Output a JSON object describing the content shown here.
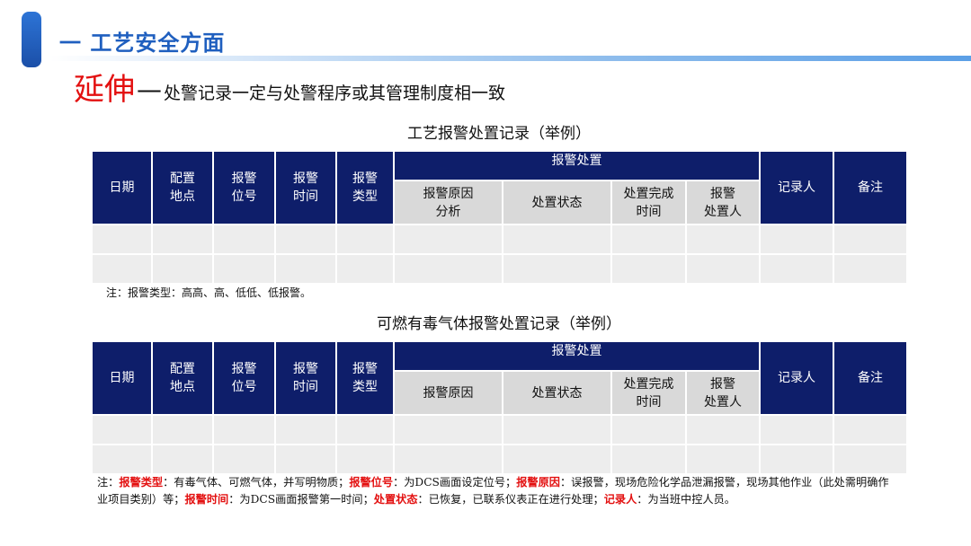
{
  "header": {
    "title": "一 工艺安全方面"
  },
  "subtitle": {
    "big": "延伸",
    "dash": "—",
    "rest": "处警记录一定与处警程序或其管理制度相一致"
  },
  "table1": {
    "caption": "工艺报警处置记录（举例）",
    "headers": {
      "date": "日期",
      "location": "配置\n地点",
      "alarm_pos": "报警\n位号",
      "alarm_time": "报警\n时间",
      "alarm_type": "报警\n类型",
      "group": "报警处置",
      "cause": "报警原因\n分析",
      "status": "处置状态",
      "finish_time": "处置完成\n时间",
      "handler": "报警\n处置人",
      "recorder": "记录人",
      "remark": "备注"
    },
    "note": "注：报警类型：高高、高、低低、低报警。"
  },
  "table2": {
    "caption": "可燃有毒气体报警处置记录（举例）",
    "headers": {
      "date": "日期",
      "location": "配置\n地点",
      "alarm_pos": "报警\n位号",
      "alarm_time": "报警\n时间",
      "alarm_type": "报警\n类型",
      "group": "报警处置",
      "cause": "报警原因",
      "status": "处置状态",
      "finish_time": "处置完成\n时间",
      "handler": "报警\n处置人",
      "recorder": "记录人",
      "remark": "备注"
    }
  },
  "note2": {
    "p0": "注：",
    "k1": "报警类型",
    "t1": "：有毒气体、可燃气体，并写明物质；",
    "k2": "报警位号",
    "t2": "：为DCS画面设定位号；",
    "k3": "报警原因",
    "t3": "：误报警，现场危险化学品泄漏报警，现场其他作业（此处需明确作业项目类别）等；",
    "k4": "报警时间",
    "t4": "：为DCS画面报警第一时间；",
    "k5": "处置状态",
    "t5": "：已恢复，已联系仪表正在进行处理；",
    "k6": "记录人",
    "t6": "：为当班中控人员。"
  },
  "colors": {
    "header_blue": "#0e1e6a",
    "title_blue": "#1f5fbf",
    "accent_red": "#e31010"
  }
}
